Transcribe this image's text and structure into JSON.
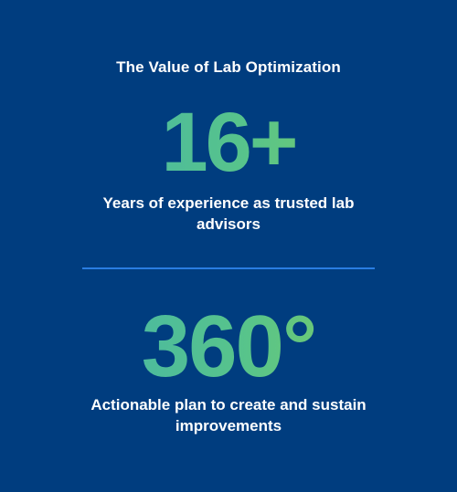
{
  "header": {
    "title": "The Value of Lab Optimization"
  },
  "stats": [
    {
      "value": "16+",
      "caption": "Years of experience as trusted lab advisors"
    },
    {
      "value": "360°",
      "caption": "Actionable plan to create and sustain improvements"
    }
  ],
  "colors": {
    "background": "#003d7f",
    "text": "#ffffff",
    "divider": "#2a7de1",
    "gradient_start": "#3fb0b4",
    "gradient_end": "#8fcf52"
  }
}
